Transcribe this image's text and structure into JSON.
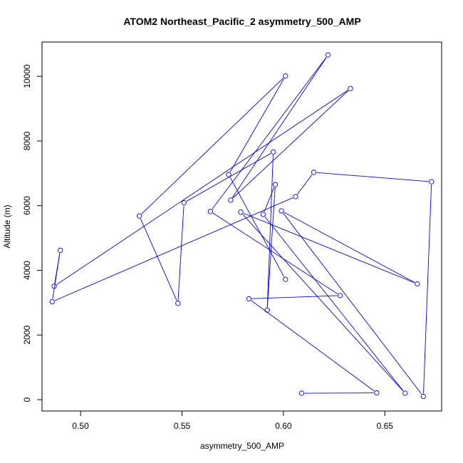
{
  "chart_data": {
    "type": "line",
    "title": "ATOM2 Northeast_Pacific_2 asymmetry_500_AMP",
    "xlabel": "asymmetry_500_AMP",
    "ylabel": "Altitude (m)",
    "xlim": [
      0.481,
      0.678
    ],
    "ylim": [
      -350,
      11060
    ],
    "xticks": [
      0.5,
      0.55,
      0.6,
      0.65
    ],
    "xtick_labels": [
      "0.50",
      "0.55",
      "0.60",
      "0.65"
    ],
    "yticks": [
      0,
      2000,
      4000,
      6000,
      8000,
      10000
    ],
    "ytick_labels": [
      "0",
      "2000",
      "4000",
      "6000",
      "8000",
      "10000"
    ],
    "grid": false,
    "markers": "open-circle",
    "colors": {
      "series": "#0000ff",
      "axes": "#000000"
    },
    "series": [
      {
        "x": [
          0.609,
          0.646,
          0.583,
          0.628,
          0.564,
          0.622,
          0.574,
          0.633,
          0.487,
          0.49,
          0.486,
          0.606,
          0.615,
          0.673,
          0.669,
          0.599,
          0.666,
          0.579,
          0.66,
          0.59,
          0.596,
          0.592,
          0.595,
          0.551,
          0.548,
          0.529,
          0.601,
          0.573,
          0.601
        ],
        "y": [
          200,
          210,
          3120,
          3220,
          5820,
          10660,
          6170,
          9620,
          3510,
          4620,
          3030,
          6280,
          7030,
          6740,
          100,
          5840,
          3580,
          5800,
          200,
          5730,
          6650,
          2770,
          7660,
          6090,
          2980,
          5680,
          10010,
          6960,
          3720
        ]
      }
    ]
  }
}
